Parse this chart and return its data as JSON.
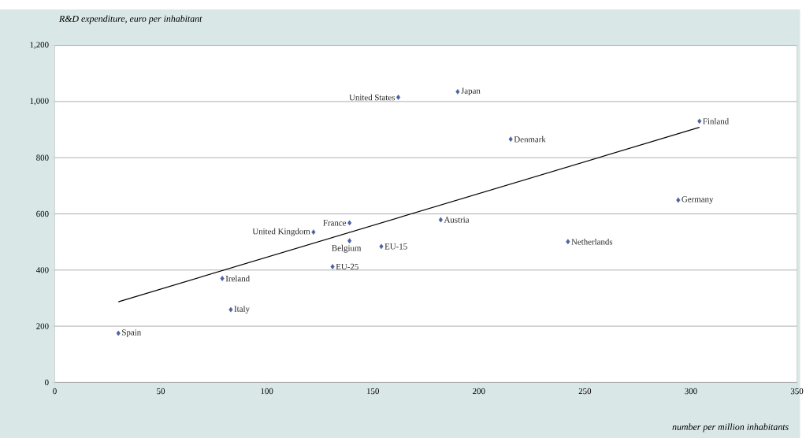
{
  "chart_data": {
    "type": "scatter",
    "ylabel": "R&D expenditure, euro per inhabitant",
    "xlabel": "number per million inhabitants",
    "xlim": [
      0,
      350
    ],
    "ylim": [
      0,
      1200
    ],
    "xticks": [
      0,
      50,
      100,
      150,
      200,
      250,
      300,
      350
    ],
    "yticks": [
      0,
      200,
      400,
      600,
      800,
      {
        "value": 1000,
        "label": "1,000"
      },
      {
        "value": 1200,
        "label": "1,200"
      }
    ],
    "grid": "y",
    "series": [
      {
        "type": "scatter",
        "color": "#4a63a0",
        "marker": "diamond",
        "x": [
          162,
          190,
          304,
          215,
          294,
          182,
          242,
          139,
          122,
          139,
          154,
          131,
          79,
          83,
          30
        ],
        "values": [
          1015,
          1035,
          930,
          866,
          649,
          579,
          501,
          568,
          535,
          504,
          484,
          412,
          370,
          259,
          175
        ]
      },
      {
        "type": "line",
        "color": "#000000",
        "marker": "none",
        "line_style": "solid",
        "x": [
          30,
          304
        ],
        "values": [
          287,
          908
        ]
      }
    ],
    "annotations": [
      {
        "text": "United States",
        "x": 162,
        "y": 1015
      },
      {
        "text": "Japan",
        "x": 190,
        "y": 1035
      },
      {
        "text": "Finland",
        "x": 304,
        "y": 930
      },
      {
        "text": "Denmark",
        "x": 215,
        "y": 866
      },
      {
        "text": "Germany",
        "x": 294,
        "y": 649
      },
      {
        "text": "Austria",
        "x": 182,
        "y": 579
      },
      {
        "text": "Netherlands",
        "x": 242,
        "y": 501
      },
      {
        "text": "France",
        "x": 139,
        "y": 568
      },
      {
        "text": "United Kingdom",
        "x": 122,
        "y": 535
      },
      {
        "text": "Belgium",
        "x": 139,
        "y": 504
      },
      {
        "text": "EU-15",
        "x": 154,
        "y": 484
      },
      {
        "text": "EU-25",
        "x": 131,
        "y": 412
      },
      {
        "text": "Ireland",
        "x": 79,
        "y": 370
      },
      {
        "text": "Italy",
        "x": 83,
        "y": 259
      },
      {
        "text": "Spain",
        "x": 30,
        "y": 175
      }
    ]
  }
}
